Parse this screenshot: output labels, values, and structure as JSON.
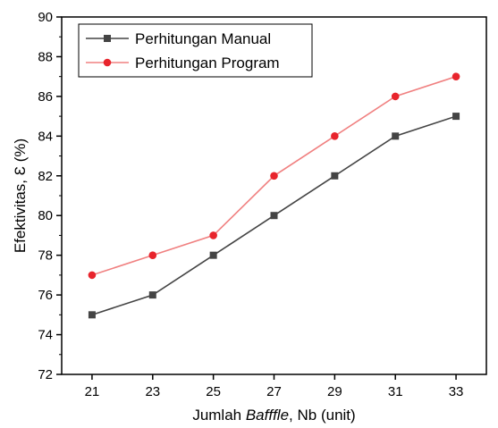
{
  "chart_data": {
    "type": "line",
    "x": [
      21,
      23,
      25,
      27,
      29,
      31,
      33
    ],
    "xlim": [
      20,
      34
    ],
    "ylim": [
      72,
      90
    ],
    "x_ticks": [
      "21",
      "23",
      "25",
      "27",
      "29",
      "31",
      "33"
    ],
    "y_ticks": [
      "72",
      "74",
      "76",
      "78",
      "80",
      "82",
      "84",
      "86",
      "88",
      "90"
    ],
    "xlabel": {
      "prefix": "Jumlah ",
      "emphasis": "Bafffle",
      "suffix": ", Nb (unit)"
    },
    "ylabel": "Efektivitas, Ɛ (%)",
    "grid": false,
    "legend_position": "top-left",
    "series": [
      {
        "name": "Perhitungan Manual",
        "values": [
          75,
          76,
          78,
          80,
          82,
          84,
          85
        ],
        "marker": "square",
        "line_color": "#444444",
        "marker_color": "#444444"
      },
      {
        "name": "Perhitungan Program",
        "values": [
          77,
          78,
          79,
          82,
          84,
          86,
          87
        ],
        "marker": "circle",
        "line_color": "#f08080",
        "marker_color": "#e8242c"
      }
    ]
  }
}
